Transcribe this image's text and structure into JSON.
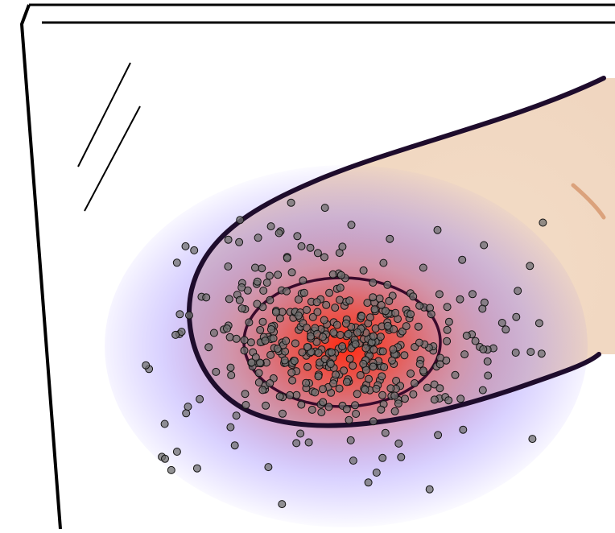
{
  "illustration": {
    "subject": "finger-pressed-on-glass",
    "fingerprint_particles": {
      "count": 480,
      "seed": 7
    },
    "colors": {
      "background": "#ffffff",
      "outline": "#000000",
      "skin": "#f3dcc6",
      "skin_crease": "#dba27c",
      "contact_center": "#ff2a12",
      "contact_mid": "#c0567a",
      "contact_halo": "#5a3cff",
      "particle_fill": "#707070",
      "particle_stroke": "#111111",
      "inner_ellipse_stroke": "#3a0a2c",
      "outer_boundary_stroke": "#1e0c2c"
    }
  }
}
